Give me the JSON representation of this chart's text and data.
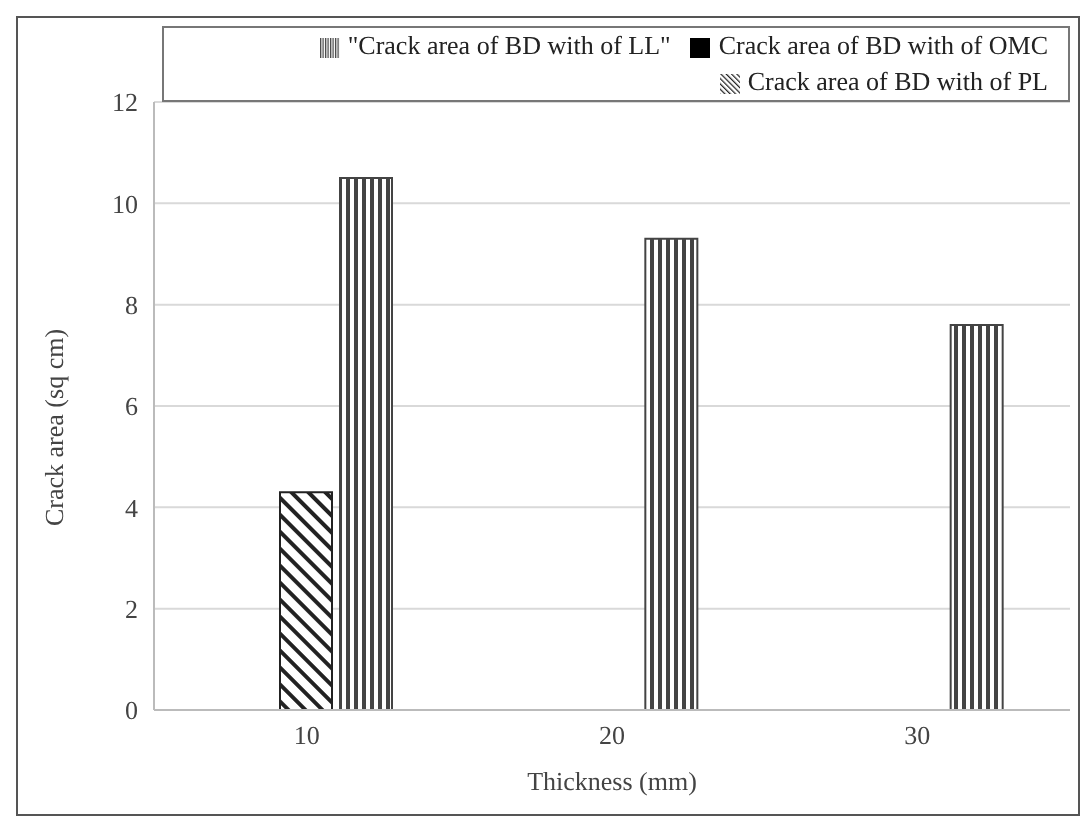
{
  "chart_data": {
    "type": "bar",
    "xlabel": "Thickness (mm)",
    "ylabel": "Crack area (sq cm)",
    "categories": [
      "10",
      "20",
      "30"
    ],
    "series": [
      {
        "name": "Crack area of BD with of OMC",
        "color": "#000000",
        "values": [
          null,
          null,
          null
        ]
      },
      {
        "name": "Crack area of BD with of PL",
        "color": "#222222",
        "values": [
          4.3,
          null,
          null
        ]
      },
      {
        "name": "\"Crack area of BD with of LL\"",
        "color": "#444444",
        "values": [
          10.5,
          9.3,
          7.6
        ]
      }
    ],
    "ylim": [
      0,
      12
    ],
    "yticks": [
      0,
      2,
      4,
      6,
      8,
      10,
      12
    ],
    "grid": "y",
    "legend": "top"
  }
}
